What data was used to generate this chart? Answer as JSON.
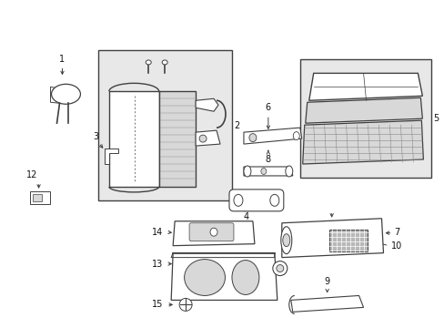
{
  "bg_color": "#ffffff",
  "line_color": "#404040",
  "gray_bg": "#e8e8e8",
  "light_gray": "#d8d8d8",
  "medium_gray": "#b8b8b8",
  "dark_gray": "#888888"
}
